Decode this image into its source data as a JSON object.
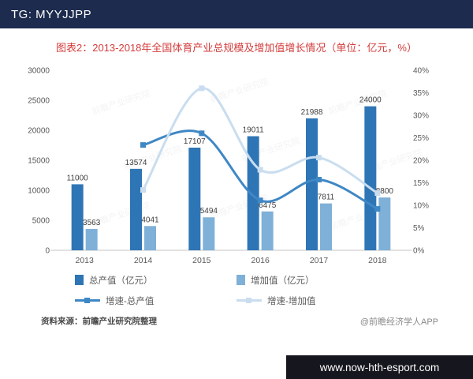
{
  "banner": {
    "tg_text": "TG: MYYJJPP",
    "website": "www.now-hth-esport.com"
  },
  "footer": {
    "source": "资料来源：前瞻产业研究院整理",
    "credit": "@前瞻经济学人APP"
  },
  "watermark_text": "前瞻产业研究院",
  "colors": {
    "topbar_bg": "#1c2b4e",
    "bottombar_bg": "#16161e",
    "title": "#d43c3c",
    "axis_text": "#595959",
    "label_text": "#3f3f3f",
    "source_text": "#4a4a4a",
    "credit_text": "#8a8a8a"
  },
  "chart_data": {
    "type": "combo-bar-line",
    "title": "图表2：2013-2018年全国体育产业总规模及增加值增长情况（单位：亿元，%）",
    "categories": [
      "2013",
      "2014",
      "2015",
      "2016",
      "2017",
      "2018"
    ],
    "bar_series": [
      {
        "name": "总产值（亿元）",
        "color": "#2e75b6",
        "axis": "left",
        "values": [
          11000,
          13574,
          17107,
          19011,
          21988,
          24000
        ]
      },
      {
        "name": "增加值（亿元）",
        "color": "#7fb0d8",
        "axis": "left",
        "values": [
          3563,
          4041,
          5494,
          6475,
          7811,
          8800
        ]
      }
    ],
    "line_series": [
      {
        "name": "增速-总产值",
        "color": "#3f87c5",
        "axis": "right",
        "values": [
          null,
          23.4,
          26.0,
          11.1,
          15.7,
          9.2
        ]
      },
      {
        "name": "增速-增加值",
        "color": "#c9ddef",
        "axis": "right",
        "values": [
          null,
          13.4,
          36.0,
          17.9,
          20.6,
          12.7
        ]
      }
    ],
    "left_axis": {
      "min": 0,
      "max": 30000,
      "step": 5000,
      "labels": [
        "0",
        "5000",
        "10000",
        "15000",
        "20000",
        "25000",
        "30000"
      ]
    },
    "right_axis": {
      "min": 0,
      "max": 40,
      "step": 5,
      "labels": [
        "0%",
        "5%",
        "10%",
        "15%",
        "20%",
        "25%",
        "30%",
        "35%",
        "40%"
      ]
    },
    "grid": false,
    "legend_position": "bottom"
  }
}
